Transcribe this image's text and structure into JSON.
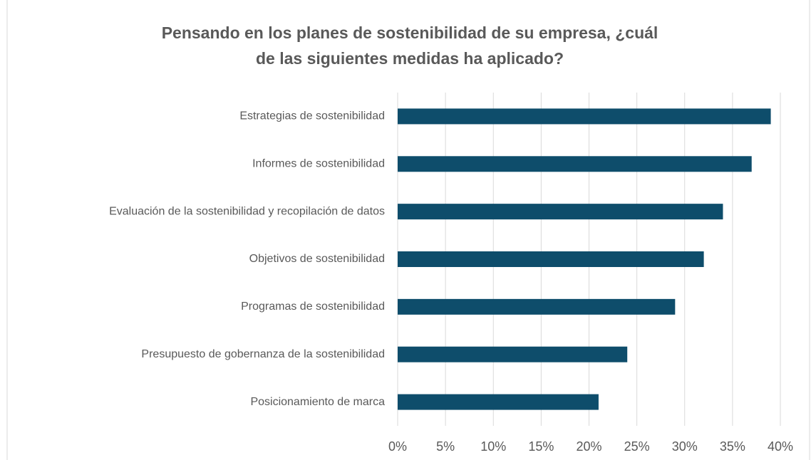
{
  "chart_data": {
    "type": "bar",
    "orientation": "horizontal",
    "title": [
      "Pensando en los planes de sostenibilidad de su empresa, ¿cuál",
      "de las siguientes medidas ha aplicado?"
    ],
    "categories": [
      "Estrategias de sostenibilidad",
      "Informes de sostenibilidad",
      "Evaluación de la sostenibilidad y recopilación de datos",
      "Objetivos de sostenibilidad",
      "Programas de sostenibilidad",
      "Presupuesto de gobernanza de la sostenibilidad",
      "Posicionamiento de marca"
    ],
    "values": [
      39,
      37,
      34,
      32,
      29,
      24,
      21
    ],
    "color": "#0e4d6b",
    "xlim": [
      0,
      40
    ],
    "xticks": [
      {
        "value": 0,
        "label": "0%"
      },
      {
        "value": 5,
        "label": "5%"
      },
      {
        "value": 10,
        "label": "10%"
      },
      {
        "value": 15,
        "label": "15%"
      },
      {
        "value": 20,
        "label": "20%"
      },
      {
        "value": 25,
        "label": "25%"
      },
      {
        "value": 30,
        "label": "30%"
      },
      {
        "value": 35,
        "label": "35%"
      },
      {
        "value": 40,
        "label": "40%"
      }
    ],
    "grid": true
  }
}
